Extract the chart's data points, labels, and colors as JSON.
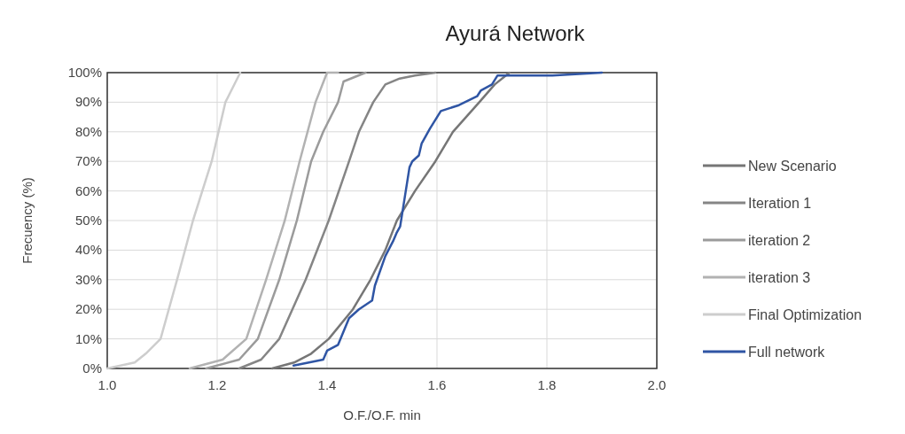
{
  "chart_data": {
    "type": "line",
    "title": "Ayurá Network",
    "xlabel": "O.F./O.F. min",
    "ylabel": "Frecuency (%)",
    "xlim": [
      1.0,
      2.0
    ],
    "xticks": [
      {
        "value": 1.0,
        "label": "1.0"
      },
      {
        "value": 1.2,
        "label": "1.2"
      },
      {
        "value": 1.4,
        "label": "1.4"
      },
      {
        "value": 1.6,
        "label": "1.6"
      },
      {
        "value": 1.8,
        "label": "1.8"
      },
      {
        "value": 2.0,
        "label": "2.0"
      }
    ],
    "ylim": [
      0,
      100
    ],
    "yticks": [
      {
        "value": 0,
        "label": "0%"
      },
      {
        "value": 10,
        "label": "10%"
      },
      {
        "value": 20,
        "label": "20%"
      },
      {
        "value": 30,
        "label": "30%"
      },
      {
        "value": 40,
        "label": "40%"
      },
      {
        "value": 50,
        "label": "50%"
      },
      {
        "value": 60,
        "label": "60%"
      },
      {
        "value": 70,
        "label": "70%"
      },
      {
        "value": 80,
        "label": "80%"
      },
      {
        "value": 90,
        "label": "90%"
      },
      {
        "value": 100,
        "label": "100%"
      }
    ],
    "grid": true,
    "legend": "right",
    "marker": "none",
    "line_style": "solid",
    "series": [
      {
        "name": "New Scenario",
        "color": "#767676",
        "x": [
          1.3,
          1.34,
          1.371,
          1.403,
          1.447,
          1.479,
          1.506,
          1.527,
          1.56,
          1.597,
          1.629,
          1.677,
          1.705,
          1.732
        ],
        "values": [
          0,
          2,
          5,
          10,
          20,
          30,
          40,
          50,
          60,
          70,
          80,
          90,
          96,
          100
        ]
      },
      {
        "name": "Iteration 1",
        "color": "#858585",
        "x": [
          1.24,
          1.28,
          1.313,
          1.361,
          1.403,
          1.44,
          1.458,
          1.484,
          1.506,
          1.532,
          1.56,
          1.597
        ],
        "values": [
          0,
          3,
          10,
          30,
          50,
          70,
          80,
          90,
          96,
          98,
          99,
          100
        ]
      },
      {
        "name": "iteration 2",
        "color": "#9b9b9b",
        "x": [
          1.18,
          1.24,
          1.274,
          1.313,
          1.345,
          1.371,
          1.393,
          1.42,
          1.43,
          1.47
        ],
        "values": [
          0,
          3,
          10,
          30,
          50,
          70,
          80,
          90,
          97,
          100
        ]
      },
      {
        "name": "iteration 3",
        "color": "#b2b2b2",
        "x": [
          1.15,
          1.21,
          1.253,
          1.289,
          1.323,
          1.35,
          1.379,
          1.4,
          1.42
        ],
        "values": [
          0,
          3,
          10,
          30,
          50,
          70,
          90,
          100,
          100
        ]
      },
      {
        "name": "Final Optimization",
        "color": "#cdcdcd",
        "x": [
          1.0,
          1.05,
          1.07,
          1.097,
          1.127,
          1.156,
          1.19,
          1.215,
          1.242
        ],
        "values": [
          0,
          2,
          5,
          10,
          30,
          50,
          70,
          90,
          100
        ]
      },
      {
        "name": "Full network",
        "color": "#2f55a4",
        "x": [
          1.339,
          1.393,
          1.4,
          1.42,
          1.44,
          1.458,
          1.482,
          1.487,
          1.506,
          1.52,
          1.527,
          1.533,
          1.55,
          1.555,
          1.567,
          1.572,
          1.587,
          1.607,
          1.64,
          1.673,
          1.68,
          1.7,
          1.71,
          1.81,
          1.9
        ],
        "values": [
          1,
          3,
          6,
          8,
          17,
          20,
          23,
          28,
          38,
          43,
          46,
          48,
          68,
          70,
          72,
          76,
          81,
          87,
          89,
          92,
          94,
          96,
          99,
          99,
          100
        ]
      }
    ]
  }
}
